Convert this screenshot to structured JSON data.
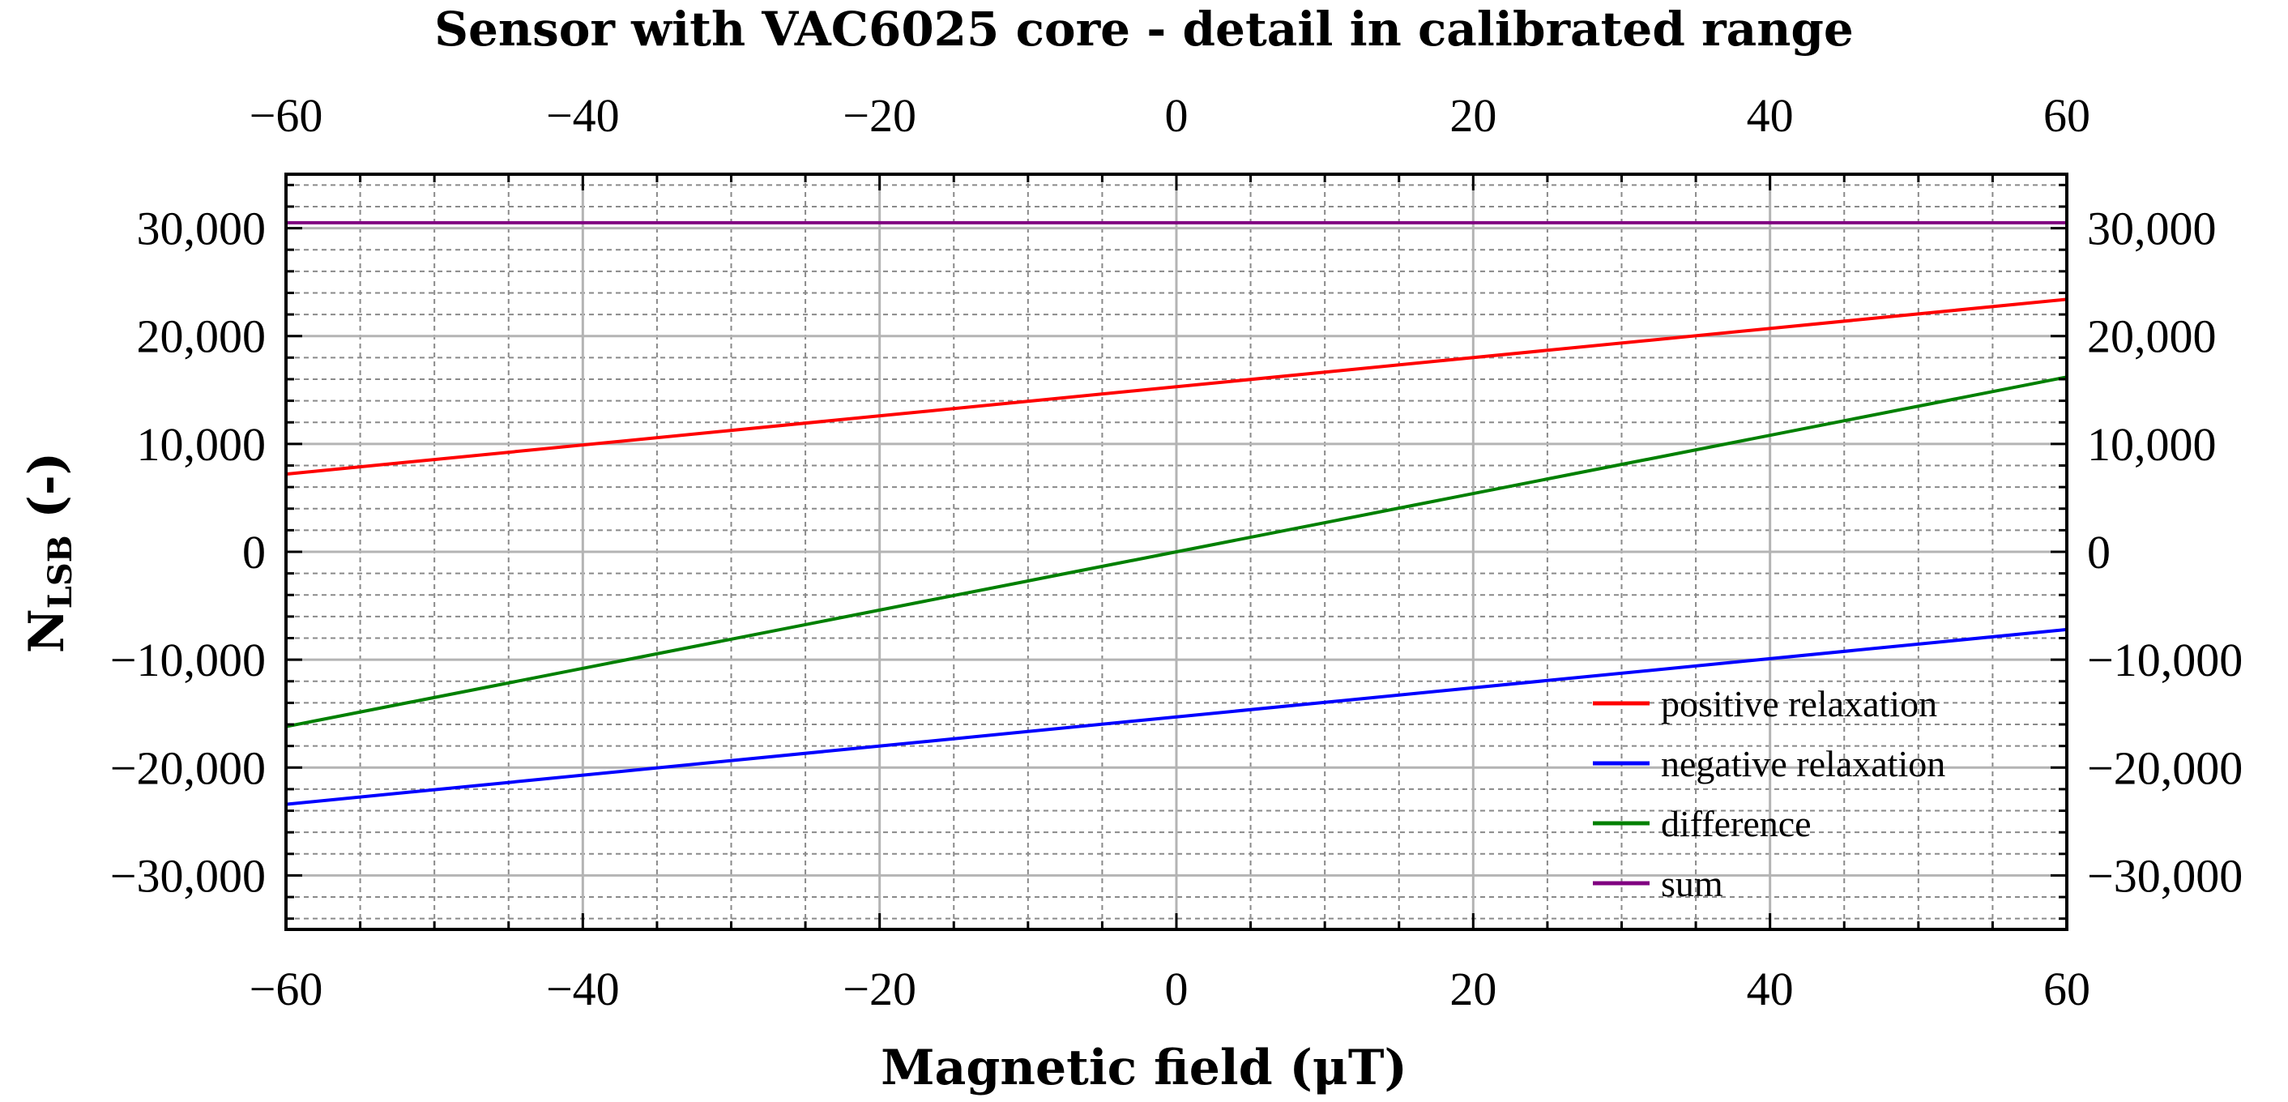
{
  "chart_data": {
    "type": "line",
    "title": "Sensor with VAC6025 core - detail in calibrated range",
    "xlabel": "Magnetic field (μT)",
    "ylabel": {
      "main": "N",
      "subscript": "LSB",
      "suffix": " (-)"
    },
    "xlim": [
      -60,
      60
    ],
    "ylim": [
      -35000,
      35000
    ],
    "x_ticks": [
      -60,
      -40,
      -20,
      0,
      20,
      40,
      60
    ],
    "x_tick_labels": [
      "−60",
      "−40",
      "−20",
      "0",
      "20",
      "40",
      "60"
    ],
    "y_ticks": [
      30000,
      20000,
      10000,
      0,
      -10000,
      -20000,
      -30000
    ],
    "y_tick_labels": [
      "30,000",
      "20,000",
      "10,000",
      "0",
      "−10,000",
      "−20,000",
      "−30,000"
    ],
    "grid": true,
    "legend_position": "bottom-right",
    "x": [
      -60,
      60
    ],
    "series": [
      {
        "name": "positive relaxation",
        "color": "#ff0000",
        "values": [
          7200,
          23400
        ]
      },
      {
        "name": "negative relaxation",
        "color": "#0000ff",
        "values": [
          -23400,
          -7200
        ]
      },
      {
        "name": "difference",
        "color": "#008000",
        "values": [
          -16200,
          16200
        ]
      },
      {
        "name": "sum",
        "color": "#800080",
        "values": [
          30500,
          30500
        ]
      }
    ]
  }
}
